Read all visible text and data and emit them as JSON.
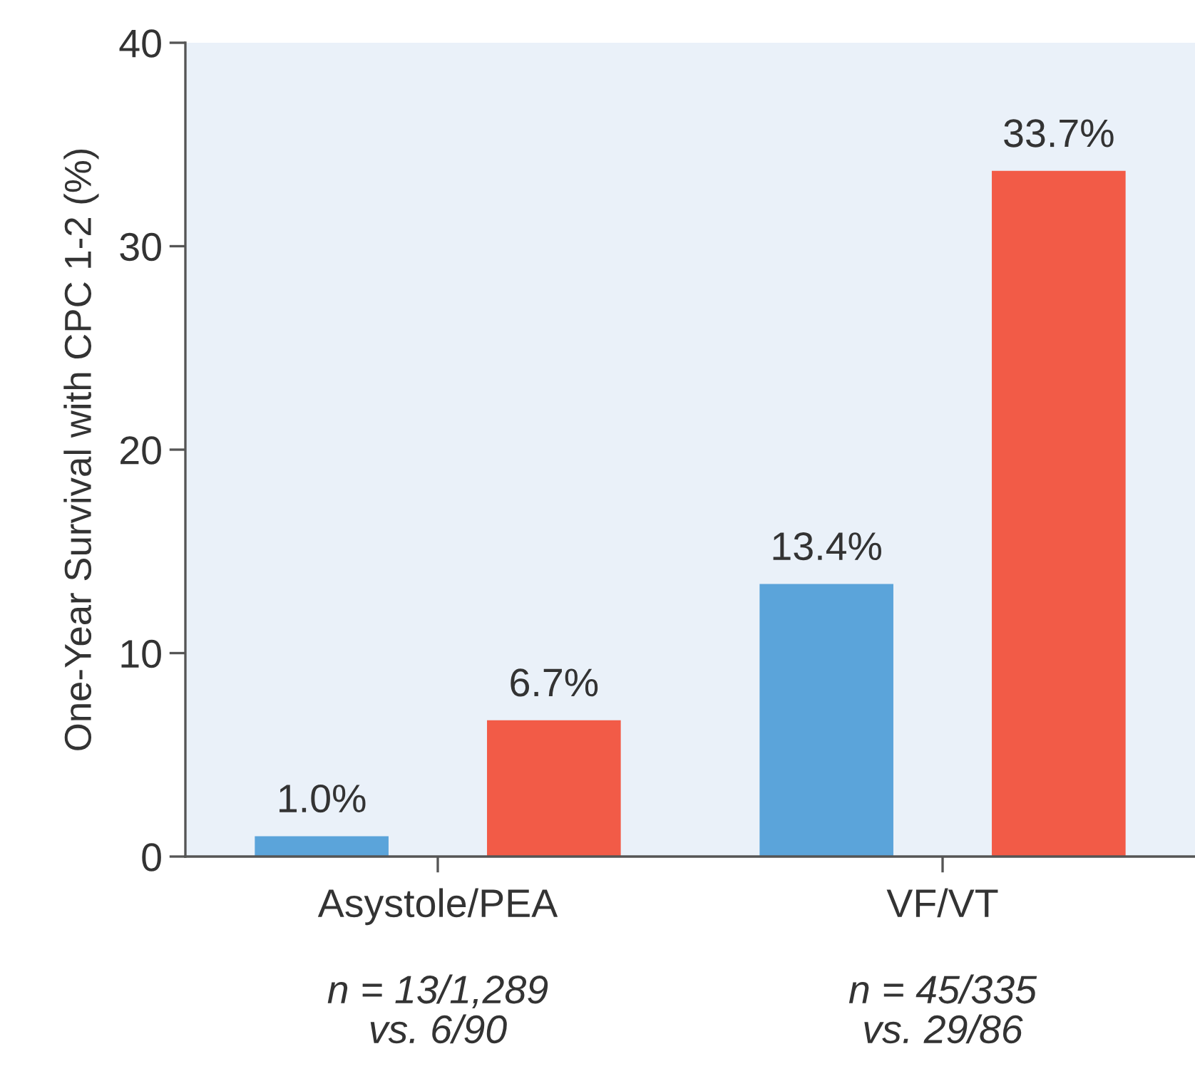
{
  "chart_data": {
    "type": "bar",
    "ylabel": "One-Year Survival with CPC 1-2 (%)",
    "categories": [
      "Asystole/PEA",
      "VF/VT"
    ],
    "series": [
      {
        "color": "#5ba4da",
        "values": [
          1.0,
          13.4
        ],
        "value_labels": [
          "1.0%",
          "13.4%"
        ]
      },
      {
        "color": "#f25b47",
        "values": [
          6.7,
          33.7
        ],
        "value_labels": [
          "6.7%",
          "33.7%"
        ]
      }
    ],
    "ylim": [
      0,
      40
    ],
    "yticks": [
      0,
      10,
      20,
      30,
      40
    ],
    "annotations": [
      "n = 13/1,289\nvs. 6/90",
      "n = 45/335\nvs. 29/86"
    ]
  }
}
